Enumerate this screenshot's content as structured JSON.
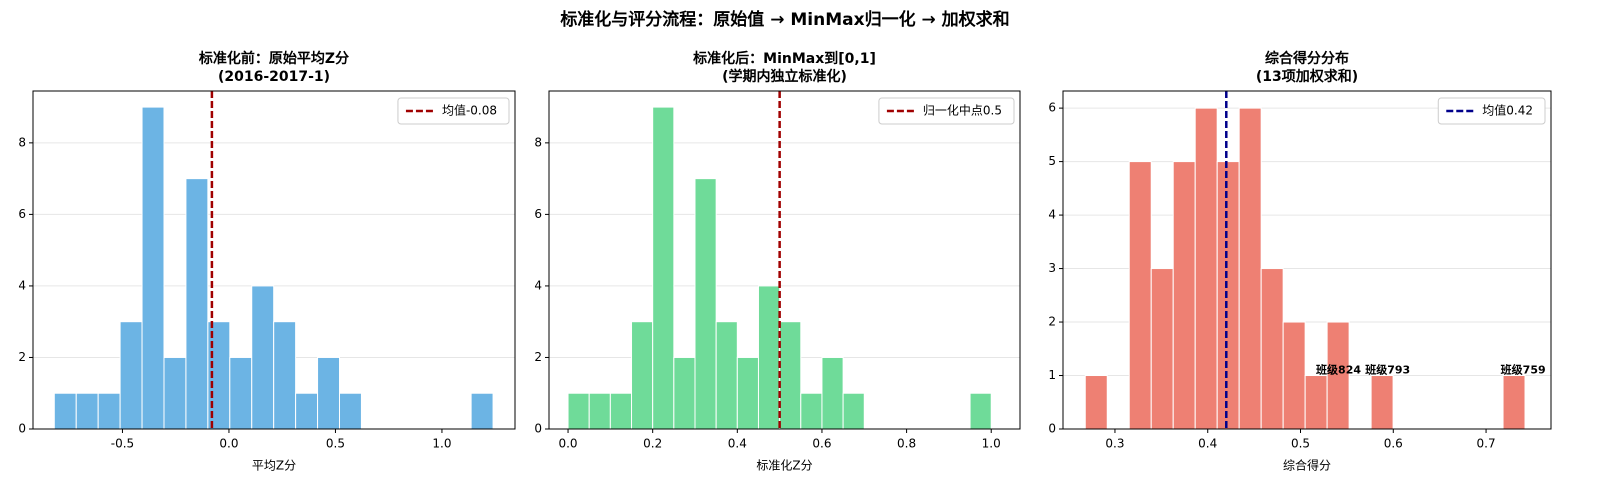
{
  "suptitle": "标准化与评分流程：原始值 → MinMax归一化 → 加权求和",
  "chart_data": [
    {
      "type": "histogram",
      "title": "标准化前：原始平均Z分",
      "subtitle": "(2016-2017-1)",
      "xlabel": "平均Z分",
      "bins": [
        -0.82,
        -0.717,
        -0.614,
        -0.511,
        -0.408,
        -0.305,
        -0.202,
        -0.099,
        0.004,
        0.107,
        0.21,
        0.313,
        0.416,
        0.519,
        0.622,
        0.725,
        0.828,
        0.931,
        1.034,
        1.137,
        1.24
      ],
      "counts": [
        1,
        1,
        1,
        3,
        9,
        2,
        7,
        3,
        2,
        4,
        3,
        1,
        2,
        1,
        0,
        0,
        0,
        0,
        0,
        1
      ],
      "color": "#6cb4e4",
      "xlim": [
        -0.92,
        1.343
      ],
      "ylim": [
        0,
        9.45
      ],
      "xticks": [
        -0.5,
        {
          "value": 0,
          "label": "0.0"
        },
        0.5,
        {
          "value": 1,
          "label": "1.0"
        }
      ],
      "yticks": [
        0,
        2,
        4,
        6,
        8
      ],
      "grid": "y",
      "vline": {
        "value": -0.08,
        "label": "均值-0.08",
        "color": "#a00000"
      },
      "legend": "upper right"
    },
    {
      "type": "histogram",
      "title": "标准化后：MinMax到[0,1]",
      "subtitle": "(学期内独立标准化)",
      "xlabel": "标准化Z分",
      "bins": [
        0,
        0.05,
        0.1,
        0.15,
        0.2,
        0.25,
        0.3,
        0.35,
        0.4,
        0.45,
        0.5,
        0.55,
        0.6,
        0.65,
        0.7,
        0.75,
        0.8,
        0.85,
        0.9,
        0.95,
        1
      ],
      "counts": [
        1,
        1,
        1,
        3,
        9,
        2,
        7,
        3,
        2,
        4,
        3,
        1,
        2,
        1,
        0,
        0,
        0,
        0,
        0,
        1
      ],
      "color": "#6fdb99",
      "xlim": [
        -0.045,
        1.068
      ],
      "ylim": [
        0,
        9.45
      ],
      "xticks": [
        {
          "value": 0,
          "label": "0.0"
        },
        0.2,
        0.4,
        0.6,
        0.8,
        {
          "value": 1,
          "label": "1.0"
        }
      ],
      "yticks": [
        0,
        2,
        4,
        6,
        8
      ],
      "grid": "y",
      "vline": {
        "value": 0.5,
        "label": "归一化中点0.5",
        "color": "#a00000"
      },
      "legend": "upper right"
    },
    {
      "type": "histogram",
      "title": "综合得分分布",
      "subtitle": "(13项加权求和)",
      "xlabel": "综合得分",
      "bins": [
        0.268,
        0.2917,
        0.3154,
        0.3391,
        0.3628,
        0.3865,
        0.4102,
        0.4339,
        0.4576,
        0.4813,
        0.505,
        0.5287,
        0.5524,
        0.5761,
        0.5998,
        0.6235,
        0.6472,
        0.6709,
        0.6946,
        0.7183,
        0.742
      ],
      "counts": [
        1,
        0,
        5,
        3,
        5,
        6,
        5,
        6,
        3,
        2,
        1,
        2,
        0,
        1,
        0,
        0,
        0,
        0,
        0,
        1
      ],
      "color": "#ee8073",
      "xlim": [
        0.244,
        0.77
      ],
      "ylim": [
        0,
        6.32
      ],
      "xticks": [
        0.3,
        0.4,
        0.5,
        0.6,
        0.7
      ],
      "yticks": [
        0,
        1,
        2,
        3,
        4,
        5,
        6
      ],
      "grid": "y",
      "vline": {
        "value": 0.42,
        "label": "均值0.42",
        "color": "#00008b"
      },
      "legend": "upper right",
      "annotations": [
        {
          "text": "班级824",
          "x": 0.541,
          "y": 1
        },
        {
          "text": "班级793",
          "x": 0.594,
          "y": 1
        },
        {
          "text": "班级759",
          "x": 0.74,
          "y": 1
        }
      ],
      "annotation_color": "#8b0000"
    }
  ]
}
